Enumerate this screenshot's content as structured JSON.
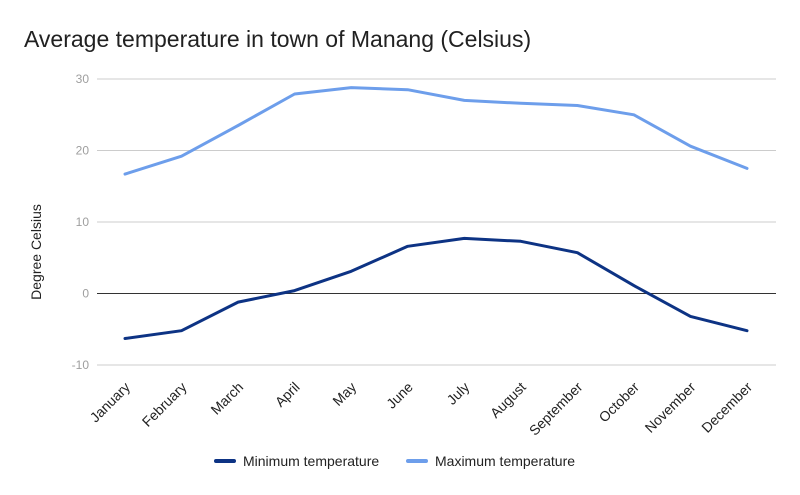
{
  "chart_data": {
    "type": "line",
    "title": "Average temperature in town of Manang (Celsius)",
    "xlabel": "",
    "ylabel": "Degree Celsius",
    "categories": [
      "January",
      "February",
      "March",
      "April",
      "May",
      "June",
      "July",
      "August",
      "September",
      "October",
      "November",
      "December"
    ],
    "ylim": [
      -10,
      30
    ],
    "yticks": [
      -10,
      0,
      10,
      20,
      30
    ],
    "grid": true,
    "legend": "bottom",
    "series": [
      {
        "name": "Minimum temperature",
        "color": "#0d3384",
        "values": [
          -6.3,
          -5.2,
          -1.2,
          0.4,
          3.1,
          6.6,
          7.7,
          7.3,
          5.7,
          1.1,
          -3.2,
          -5.2
        ]
      },
      {
        "name": "Maximum temperature",
        "color": "#6d9eeb",
        "values": [
          16.7,
          19.2,
          23.5,
          27.9,
          28.8,
          28.5,
          27.0,
          26.6,
          26.3,
          25.0,
          20.6,
          17.5
        ]
      }
    ]
  }
}
